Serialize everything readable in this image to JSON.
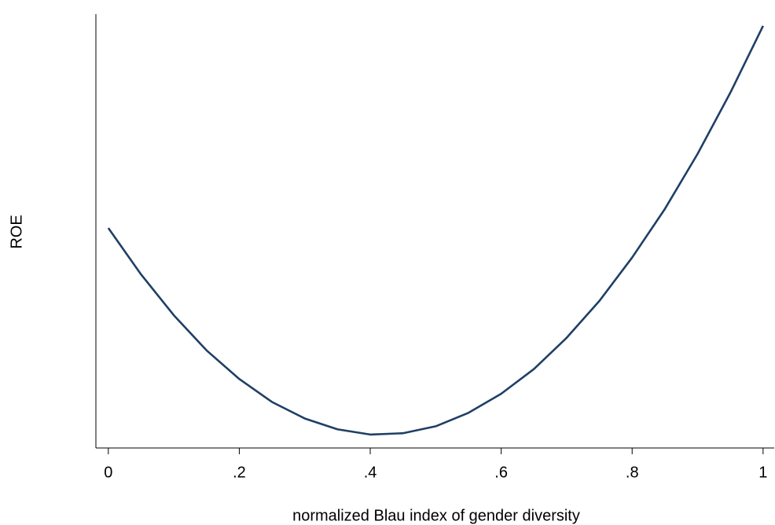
{
  "chart_data": {
    "type": "line",
    "x_label": "normalized Blau index of gender diversity",
    "y_label": "ROE",
    "x": [
      0,
      0.05,
      0.1,
      0.15,
      0.2,
      0.25,
      0.3,
      0.35,
      0.4,
      0.45,
      0.5,
      0.55,
      0.6,
      0.65,
      0.7,
      0.75,
      0.8,
      0.85,
      0.9,
      0.95,
      1
    ],
    "values": [
      0.507,
      0.4,
      0.306,
      0.225,
      0.159,
      0.106,
      0.068,
      0.043,
      0.031,
      0.034,
      0.05,
      0.081,
      0.125,
      0.182,
      0.254,
      0.339,
      0.439,
      0.551,
      0.678,
      0.819,
      0.973
    ],
    "color": "#1f3f66",
    "xlim": [
      -0.019,
      1.017
    ],
    "xticks": [
      0,
      {
        "value": 0.2,
        "label": ".2"
      },
      {
        "value": 0.4,
        "label": ".4"
      },
      {
        "value": 0.6,
        "label": ".6"
      },
      {
        "value": 0.8,
        "label": ".8"
      },
      1
    ],
    "ylim": [
      0,
      1
    ],
    "grid": false
  }
}
